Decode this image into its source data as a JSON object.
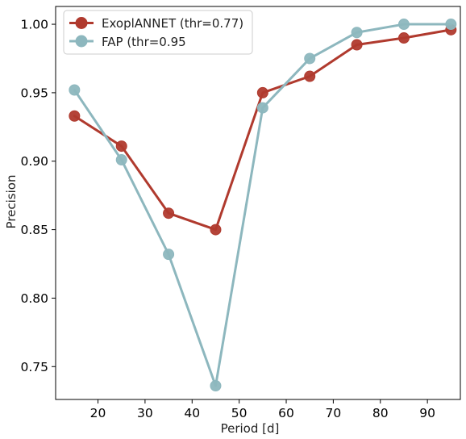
{
  "chart_data": {
    "type": "line",
    "xlabel": "Period [d]",
    "ylabel": "Precision",
    "xlim": [
      11,
      97
    ],
    "ylim": [
      0.726,
      1.013
    ],
    "xticks": [
      20,
      30,
      40,
      50,
      60,
      70,
      80,
      90
    ],
    "xtick_labels": [
      "20",
      "30",
      "40",
      "50",
      "60",
      "70",
      "80",
      "90"
    ],
    "yticks": [
      0.75,
      0.8,
      0.85,
      0.9,
      0.95,
      1.0
    ],
    "ytick_labels": [
      "0.75",
      "0.80",
      "0.85",
      "0.90",
      "0.95",
      "1.00"
    ],
    "grid": false,
    "legend_position": "top-left",
    "series": [
      {
        "name": "ExoplANNET (thr=0.77)",
        "color": "#b03a2e",
        "x": [
          15,
          25,
          35,
          45,
          55,
          65,
          75,
          85,
          95
        ],
        "y": [
          0.933,
          0.911,
          0.862,
          0.85,
          0.95,
          0.962,
          0.985,
          0.99,
          0.996
        ]
      },
      {
        "name": "FAP (thr=0.95",
        "color": "#8db7be",
        "x": [
          15,
          25,
          35,
          45,
          55,
          65,
          75,
          85,
          95
        ],
        "y": [
          0.952,
          0.901,
          0.832,
          0.736,
          0.939,
          0.975,
          0.994,
          1.0,
          1.0
        ]
      }
    ]
  }
}
